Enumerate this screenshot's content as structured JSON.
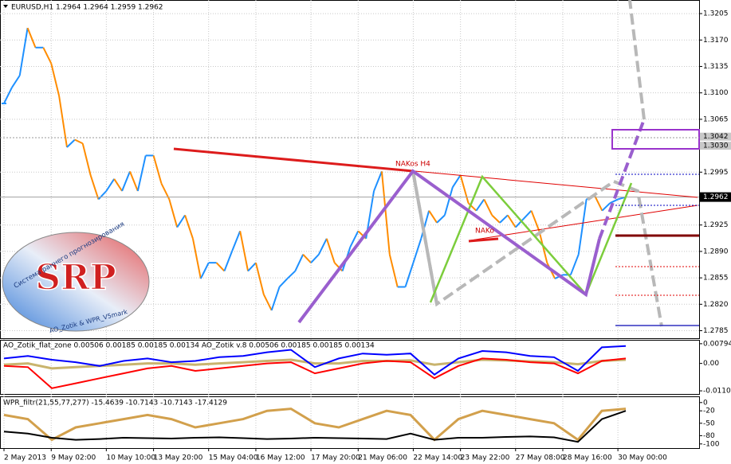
{
  "chart_data": [
    {
      "type": "line",
      "title": "EURUSD,H1  1.2964 1.2964 1.2959 1.2962",
      "annotations": [
        "NAKos H4",
        "NAKo"
      ],
      "categories": [
        "2 May 2013",
        null,
        null,
        null,
        null,
        null,
        "9 May 02:00",
        null,
        null,
        null,
        null,
        null,
        null,
        "10 May 10:00",
        null,
        null,
        null,
        null,
        null,
        "13 May 20:00",
        null,
        null,
        null,
        null,
        null,
        null,
        "15 May 04:00",
        null,
        null,
        null,
        null,
        null,
        "16 May 12:00",
        null,
        null,
        null,
        null,
        null,
        null,
        "17 May 20:00",
        null,
        null,
        null,
        null,
        null,
        "21 May 06:00",
        null,
        null,
        null,
        null,
        null,
        null,
        "22 May 14:00",
        null,
        null,
        null,
        null,
        null,
        "23 May 22:00",
        null,
        null,
        null,
        null,
        null,
        null,
        "27 May 08:00",
        null,
        null,
        null,
        null,
        null,
        "28 May 16:00",
        null,
        null,
        null,
        null,
        null,
        null,
        "30 May 00:00",
        null
      ],
      "values": [
        1.3086,
        1.3107,
        1.3123,
        1.3186,
        1.316,
        1.316,
        1.3139,
        1.3096,
        1.3028,
        1.3038,
        1.3033,
        1.2991,
        1.2959,
        1.297,
        1.2986,
        1.297,
        1.2996,
        1.297,
        1.3017,
        1.3017,
        1.298,
        1.2959,
        1.2922,
        1.2938,
        1.2907,
        1.2854,
        1.2875,
        1.2875,
        1.2864,
        1.2891,
        1.2917,
        1.2864,
        1.2875,
        1.2833,
        1.2812,
        1.2843,
        1.2854,
        1.2864,
        1.2886,
        1.2875,
        1.2886,
        1.2907,
        1.2875,
        1.2864,
        1.2896,
        1.2917,
        1.2907,
        1.297,
        1.2996,
        1.2886,
        1.2843,
        1.2843,
        1.2875,
        1.2907,
        1.2944,
        1.2928,
        1.2938,
        1.2975,
        1.2991,
        1.2954,
        1.2944,
        1.2959,
        1.2938,
        1.2928,
        1.2938,
        1.2922,
        1.2933,
        1.2944,
        1.2917,
        1.2875,
        1.2854,
        1.2859,
        1.2859,
        1.2886,
        1.2959,
        1.2965,
        1.2944,
        1.2954,
        1.2959,
        1.2962
      ],
      "up_color": "#1e90ff",
      "down_color": "#ff8c00",
      "ylim": [
        1.2775,
        1.3223
      ],
      "yticks": [
        1.3205,
        {
          "value": 1.317,
          "label": "1.3170"
        },
        1.3135,
        {
          "value": 1.31,
          "label": "1.3100"
        },
        1.3065,
        1.2995,
        1.2925,
        {
          "value": 1.289,
          "label": "1.2890"
        },
        1.2855,
        {
          "value": 1.282,
          "label": "1.2820"
        },
        1.2785
      ],
      "levels": [
        1.3042,
        {
          "value": 1.303,
          "label": "1.3030"
        }
      ],
      "current_price": 1.2962,
      "grid": true
    },
    {
      "type": "line",
      "title": "AO_Zotik_flat_zone 0.00506 0.00185 0.00185 0.00134  AO_Zotik v.8 0.00506 0.00185 0.00185 0.00134",
      "series": [
        {
          "color": "#c9b46e",
          "values": [
            -0.0005,
            0.0,
            -0.002,
            -0.0015,
            -0.001,
            -0.0005,
            0.0,
            0.0,
            -0.0005,
            0.0,
            0.0005,
            0.001,
            0.0015,
            0.0,
            0.0,
            0.001,
            0.001,
            0.0012,
            -0.0005,
            0.0005,
            0.0015,
            0.0012,
            0.0008,
            0.0005,
            -0.0003,
            0.001,
            0.0015
          ]
        },
        {
          "color": "#ff0000",
          "values": [
            -0.001,
            -0.0015,
            -0.01,
            -0.008,
            -0.006,
            -0.004,
            -0.002,
            -0.001,
            -0.003,
            -0.002,
            -0.001,
            0.0,
            0.0005,
            -0.004,
            -0.002,
            0.0,
            0.001,
            0.0005,
            -0.006,
            -0.001,
            0.002,
            0.0015,
            0.0005,
            0.0,
            -0.004,
            0.001,
            0.002
          ]
        },
        {
          "color": "#0000ff",
          "values": [
            0.002,
            0.003,
            0.0015,
            0.0005,
            -0.001,
            0.001,
            0.002,
            0.0005,
            0.001,
            0.0025,
            0.003,
            0.0045,
            0.0055,
            -0.0015,
            0.002,
            0.004,
            0.0035,
            0.004,
            -0.0045,
            0.002,
            0.005,
            0.0045,
            0.003,
            0.0025,
            -0.003,
            0.0065,
            0.007
          ]
        }
      ],
      "ylim": [
        -0.0123,
        0.0095
      ],
      "yticks": [
        0.00794,
        {
          "value": 0,
          "label": "0.00"
        },
        -0.01104
      ]
    },
    {
      "type": "line",
      "title": "WPR_filtr(21,55,77,277) -15.4639 -10.7143 -10.7143 -17.4129",
      "series": [
        {
          "color": "#d2a04c",
          "values": [
            -30,
            -40,
            -90,
            -60,
            -50,
            -40,
            -30,
            -40,
            -60,
            -50,
            -40,
            -20,
            -15,
            -50,
            -60,
            -40,
            -20,
            -30,
            -90,
            -40,
            -20,
            -30,
            -40,
            -50,
            -90,
            -20,
            -15
          ]
        },
        {
          "color": "#000000",
          "values": [
            -70,
            -75,
            -85,
            -90,
            -88,
            -85,
            -86,
            -87,
            -85,
            -84,
            -86,
            -88,
            -87,
            -85,
            -86,
            -87,
            -88,
            -75,
            -90,
            -85,
            -85,
            -83,
            -82,
            -84,
            -95,
            -40,
            -20
          ]
        }
      ],
      "ylim": [
        -110,
        15
      ],
      "yticks": [
        0,
        -20,
        -50,
        -80,
        -100
      ]
    }
  ],
  "logo": {
    "title": "SRP",
    "subtitle": "Система раннего прогнозирования",
    "credit": "AO_Zotik & WPR_V5mark"
  }
}
